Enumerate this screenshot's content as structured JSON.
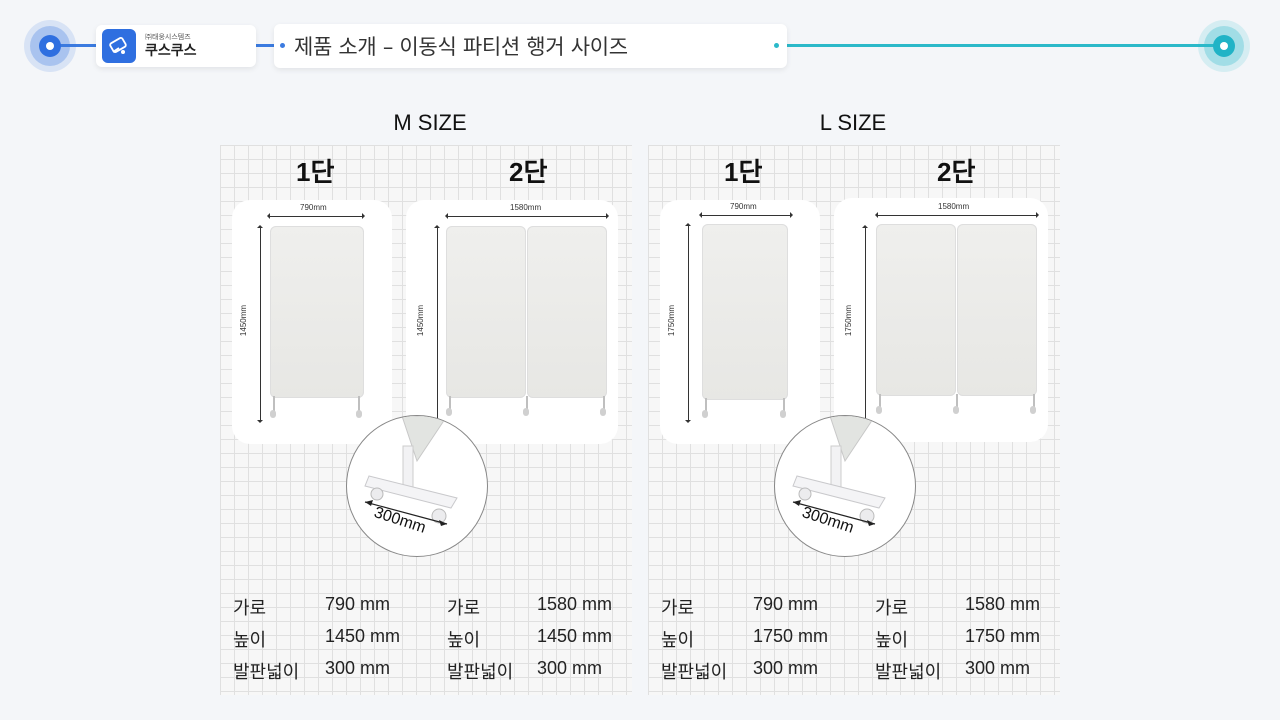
{
  "header": {
    "company_small": "㈜태웅시스템즈",
    "brand_name": "쿠스쿠스",
    "title": "제품 소개 – 이동식 파티션 행거 사이즈"
  },
  "sections": [
    {
      "label": "M SIZE",
      "tiers": [
        {
          "label": "1단",
          "width_dim": "790mm",
          "height_dim": "1450mm"
        },
        {
          "label": "2단",
          "width_dim": "1580mm",
          "height_dim": "1450mm"
        }
      ],
      "zoom_label": "300mm",
      "specs": [
        [
          {
            "k": "가로",
            "v": "790 mm"
          },
          {
            "k": "높이",
            "v": "1450 mm"
          },
          {
            "k": "발판넓이",
            "v": "300 mm"
          }
        ],
        [
          {
            "k": "가로",
            "v": "1580 mm"
          },
          {
            "k": "높이",
            "v": "1450 mm"
          },
          {
            "k": "발판넓이",
            "v": "300 mm"
          }
        ]
      ]
    },
    {
      "label": "L SIZE",
      "tiers": [
        {
          "label": "1단",
          "width_dim": "790mm",
          "height_dim": "1750mm"
        },
        {
          "label": "2단",
          "width_dim": "1580mm",
          "height_dim": "1750mm"
        }
      ],
      "zoom_label": "300mm",
      "specs": [
        [
          {
            "k": "가로",
            "v": "790 mm"
          },
          {
            "k": "높이",
            "v": "1750 mm"
          },
          {
            "k": "발판넓이",
            "v": "300 mm"
          }
        ],
        [
          {
            "k": "가로",
            "v": "1580 mm"
          },
          {
            "k": "높이",
            "v": "1750 mm"
          },
          {
            "k": "발판넓이",
            "v": "300 mm"
          }
        ]
      ]
    }
  ],
  "colors": {
    "accent_blue": "#2f6fe0",
    "accent_teal": "#20b3c6"
  }
}
